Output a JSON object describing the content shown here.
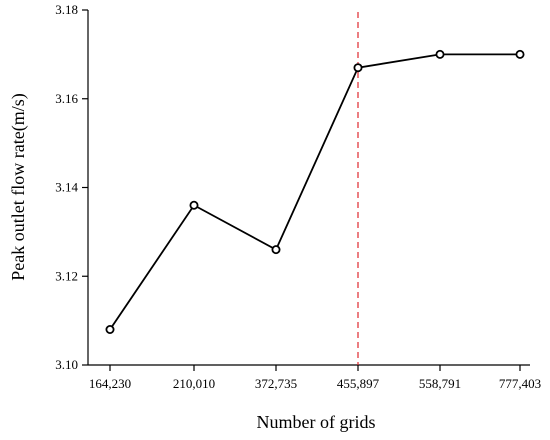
{
  "chart_data": {
    "type": "line",
    "title": "",
    "xlabel": "Number of grids",
    "ylabel": "Peak outlet flow rate(m/s)",
    "categories": [
      "164,230",
      "210,010",
      "372,735",
      "455,897",
      "558,791",
      "777,403"
    ],
    "series": [
      {
        "values": [
          3.108,
          3.136,
          3.126,
          3.167,
          3.17,
          3.17
        ]
      }
    ],
    "ylim": [
      3.1,
      3.18
    ],
    "yticks": [
      3.1,
      3.12,
      3.14,
      3.16,
      3.18
    ],
    "ytick_labels": [
      "3.10",
      "3.12",
      "3.14",
      "3.16",
      "3.18"
    ],
    "reference_line": {
      "category": "455,897",
      "style": "dashed",
      "color": "#e0282e"
    },
    "marker": "open-circle",
    "line_color": "#000000",
    "grid": false,
    "legend": "none"
  }
}
